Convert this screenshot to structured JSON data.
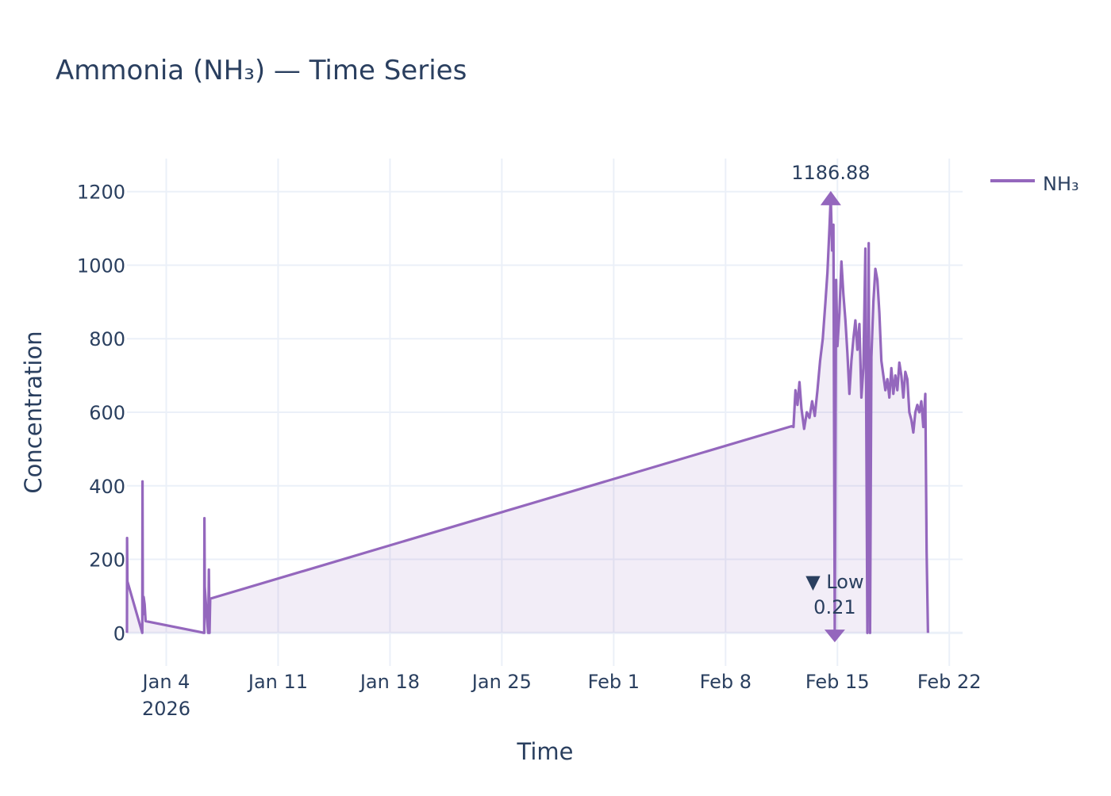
{
  "chart_data": {
    "type": "area",
    "title": "Ammonia (NH₃) — Time Series",
    "xlabel": "Time",
    "ylabel": "Concentration",
    "x_ticks": [
      {
        "date": "2026-01-04",
        "label": "Jan 4",
        "sublabel": "2026"
      },
      {
        "date": "2026-01-11",
        "label": "Jan 11"
      },
      {
        "date": "2026-01-18",
        "label": "Jan 18"
      },
      {
        "date": "2026-01-25",
        "label": "Jan 25"
      },
      {
        "date": "2026-02-01",
        "label": "Feb 1"
      },
      {
        "date": "2026-02-08",
        "label": "Feb 8"
      },
      {
        "date": "2026-02-15",
        "label": "Feb 15"
      },
      {
        "date": "2026-02-22",
        "label": "Feb 22"
      }
    ],
    "y_ticks": [
      0,
      200,
      400,
      600,
      800,
      1000,
      1200
    ],
    "xlim": [
      "2026-01-01 13:00",
      "2026-02-22 20:00"
    ],
    "ylim": [
      -90,
      1290
    ],
    "grid": true,
    "legend_position": "top-right",
    "series": [
      {
        "name": "NH₃",
        "color": "#9467bd",
        "fill": "#9467bd",
        "points": [
          [
            "2026-01-01 13:00",
            0
          ],
          [
            "2026-01-01 13:10",
            258
          ],
          [
            "2026-01-01 13:40",
            140
          ],
          [
            "2026-01-02 12:00",
            0
          ],
          [
            "2026-01-02 12:20",
            412
          ],
          [
            "2026-01-02 12:50",
            50
          ],
          [
            "2026-01-02 14:00",
            98
          ],
          [
            "2026-01-02 15:30",
            78
          ],
          [
            "2026-01-02 17:00",
            32
          ],
          [
            "2026-01-06 09:00",
            0
          ],
          [
            "2026-01-06 09:20",
            312
          ],
          [
            "2026-01-06 09:50",
            125
          ],
          [
            "2026-01-06 13:00",
            40
          ],
          [
            "2026-01-06 15:00",
            0
          ],
          [
            "2026-01-06 16:00",
            172
          ],
          [
            "2026-01-06 17:00",
            0
          ],
          [
            "2026-01-06 18:00",
            93
          ],
          [
            "2026-02-12 03:00",
            562
          ],
          [
            "2026-02-12 06:00",
            560
          ],
          [
            "2026-02-12 09:00",
            660
          ],
          [
            "2026-02-12 12:00",
            620
          ],
          [
            "2026-02-12 15:00",
            682
          ],
          [
            "2026-02-12 18:00",
            610
          ],
          [
            "2026-02-12 22:00",
            555
          ],
          [
            "2026-02-13 02:00",
            600
          ],
          [
            "2026-02-13 06:00",
            585
          ],
          [
            "2026-02-13 10:00",
            630
          ],
          [
            "2026-02-13 14:00",
            590
          ],
          [
            "2026-02-13 18:00",
            660
          ],
          [
            "2026-02-13 22:00",
            740
          ],
          [
            "2026-02-14 02:00",
            800
          ],
          [
            "2026-02-14 06:00",
            900
          ],
          [
            "2026-02-14 09:00",
            980
          ],
          [
            "2026-02-14 12:00",
            1100
          ],
          [
            "2026-02-14 14:00",
            1186.88
          ],
          [
            "2026-02-14 16:00",
            1040
          ],
          [
            "2026-02-14 18:00",
            1110
          ],
          [
            "2026-02-14 20:00",
            0.21
          ],
          [
            "2026-02-14 22:00",
            960
          ],
          [
            "2026-02-15 00:00",
            780
          ],
          [
            "2026-02-15 03:00",
            870
          ],
          [
            "2026-02-15 06:00",
            1010
          ],
          [
            "2026-02-15 09:00",
            920
          ],
          [
            "2026-02-15 12:00",
            850
          ],
          [
            "2026-02-15 15:00",
            760
          ],
          [
            "2026-02-15 18:00",
            650
          ],
          [
            "2026-02-15 21:00",
            740
          ],
          [
            "2026-02-16 00:00",
            800
          ],
          [
            "2026-02-16 03:00",
            850
          ],
          [
            "2026-02-16 06:00",
            770
          ],
          [
            "2026-02-16 09:00",
            840
          ],
          [
            "2026-02-16 12:00",
            640
          ],
          [
            "2026-02-16 15:00",
            720
          ],
          [
            "2026-02-16 18:00",
            1045
          ],
          [
            "2026-02-16 21:00",
            0
          ],
          [
            "2026-02-16 23:00",
            1060
          ],
          [
            "2026-02-17 01:00",
            0
          ],
          [
            "2026-02-17 03:00",
            750
          ],
          [
            "2026-02-17 06:00",
            900
          ],
          [
            "2026-02-17 09:00",
            990
          ],
          [
            "2026-02-17 12:00",
            960
          ],
          [
            "2026-02-17 15:00",
            870
          ],
          [
            "2026-02-17 18:00",
            740
          ],
          [
            "2026-02-17 21:00",
            700
          ],
          [
            "2026-02-18 00:00",
            660
          ],
          [
            "2026-02-18 03:00",
            690
          ],
          [
            "2026-02-18 06:00",
            640
          ],
          [
            "2026-02-18 09:00",
            720
          ],
          [
            "2026-02-18 12:00",
            650
          ],
          [
            "2026-02-18 15:00",
            700
          ],
          [
            "2026-02-18 18:00",
            660
          ],
          [
            "2026-02-18 21:00",
            735
          ],
          [
            "2026-02-19 00:00",
            700
          ],
          [
            "2026-02-19 03:00",
            640
          ],
          [
            "2026-02-19 06:00",
            710
          ],
          [
            "2026-02-19 09:00",
            690
          ],
          [
            "2026-02-19 12:00",
            600
          ],
          [
            "2026-02-19 15:00",
            580
          ],
          [
            "2026-02-19 18:00",
            545
          ],
          [
            "2026-02-19 21:00",
            600
          ],
          [
            "2026-02-20 00:00",
            620
          ],
          [
            "2026-02-20 03:00",
            600
          ],
          [
            "2026-02-20 06:00",
            630
          ],
          [
            "2026-02-20 09:00",
            560
          ],
          [
            "2026-02-20 12:00",
            650
          ],
          [
            "2026-02-20 14:00",
            220
          ],
          [
            "2026-02-20 16:00",
            0
          ]
        ]
      }
    ],
    "annotations": [
      {
        "text": "1186.88",
        "x": "2026-02-14 14:00",
        "y": 1186.88,
        "marker": "triangle-up"
      },
      {
        "text_line1": "▼ Low",
        "text_line2": "0.21",
        "x": "2026-02-14 20:00",
        "y": 0.21,
        "marker": "triangle-down"
      }
    ]
  }
}
